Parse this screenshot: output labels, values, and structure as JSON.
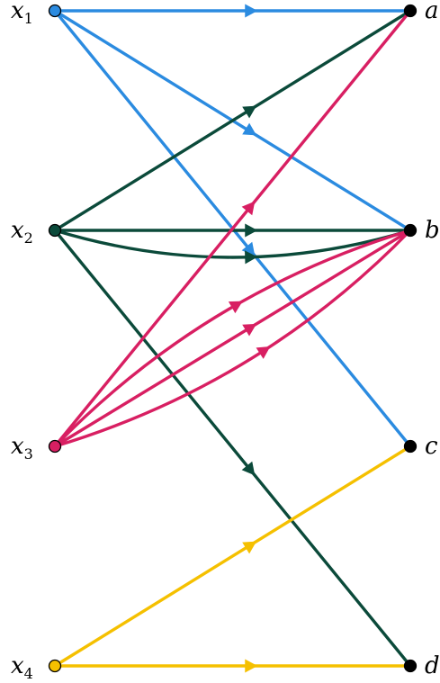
{
  "colors": {
    "x1": "#2b8be0",
    "x2": "#0b4a3a",
    "x3": "#d81f62",
    "x4": "#f5c000",
    "right_node": "#000000"
  },
  "left_nodes": [
    {
      "id": "x1",
      "label": "x",
      "sub": "1"
    },
    {
      "id": "x2",
      "label": "x",
      "sub": "2"
    },
    {
      "id": "x3",
      "label": "x",
      "sub": "3"
    },
    {
      "id": "x4",
      "label": "x",
      "sub": "4"
    }
  ],
  "right_nodes": [
    {
      "id": "a",
      "label": "a"
    },
    {
      "id": "b",
      "label": "b"
    },
    {
      "id": "c",
      "label": "c"
    },
    {
      "id": "d",
      "label": "d"
    }
  ],
  "edges": [
    {
      "from": "x1",
      "to": "a"
    },
    {
      "from": "x1",
      "to": "b"
    },
    {
      "from": "x1",
      "to": "c"
    },
    {
      "from": "x2",
      "to": "a"
    },
    {
      "from": "x2",
      "to": "b",
      "curve": 1
    },
    {
      "from": "x2",
      "to": "b"
    },
    {
      "from": "x2",
      "to": "d"
    },
    {
      "from": "x3",
      "to": "a"
    },
    {
      "from": "x3",
      "to": "b",
      "curve": 1
    },
    {
      "from": "x3",
      "to": "b"
    },
    {
      "from": "x3",
      "to": "b",
      "curve": -1
    },
    {
      "from": "x4",
      "to": "c"
    },
    {
      "from": "x4",
      "to": "d"
    }
  ]
}
